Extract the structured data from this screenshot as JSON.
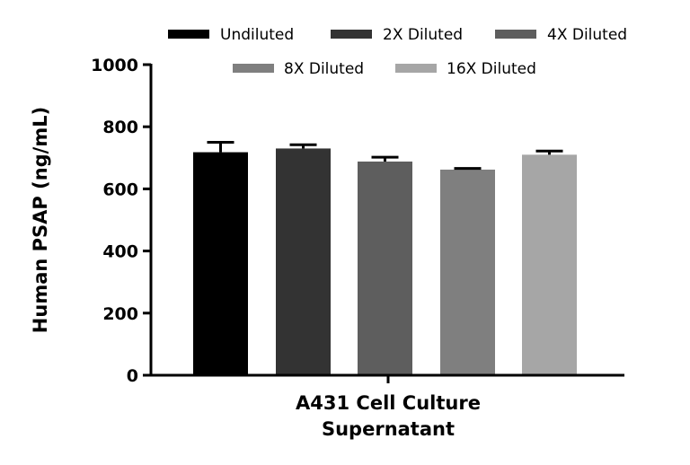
{
  "chart_data": {
    "type": "bar",
    "title": "",
    "ylabel": "Human PSAP (ng/mL)",
    "xlabel_lines": [
      "A431 Cell Culture",
      "Supernatant"
    ],
    "ylim": [
      0,
      1000
    ],
    "yticks": [
      0,
      200,
      400,
      600,
      800,
      1000
    ],
    "grid": false,
    "legend_position": "top",
    "series": [
      {
        "name": "Undiluted",
        "value": 718,
        "error": 32,
        "color": "#000000"
      },
      {
        "name": "2X Diluted",
        "value": 730,
        "error": 12,
        "color": "#333333"
      },
      {
        "name": "4X Diluted",
        "value": 688,
        "error": 14,
        "color": "#5e5e5e"
      },
      {
        "name": "8X Diluted",
        "value": 662,
        "error": 4,
        "color": "#7f7f7f"
      },
      {
        "name": "16X Diluted",
        "value": 710,
        "error": 12,
        "color": "#a6a6a6"
      }
    ]
  }
}
